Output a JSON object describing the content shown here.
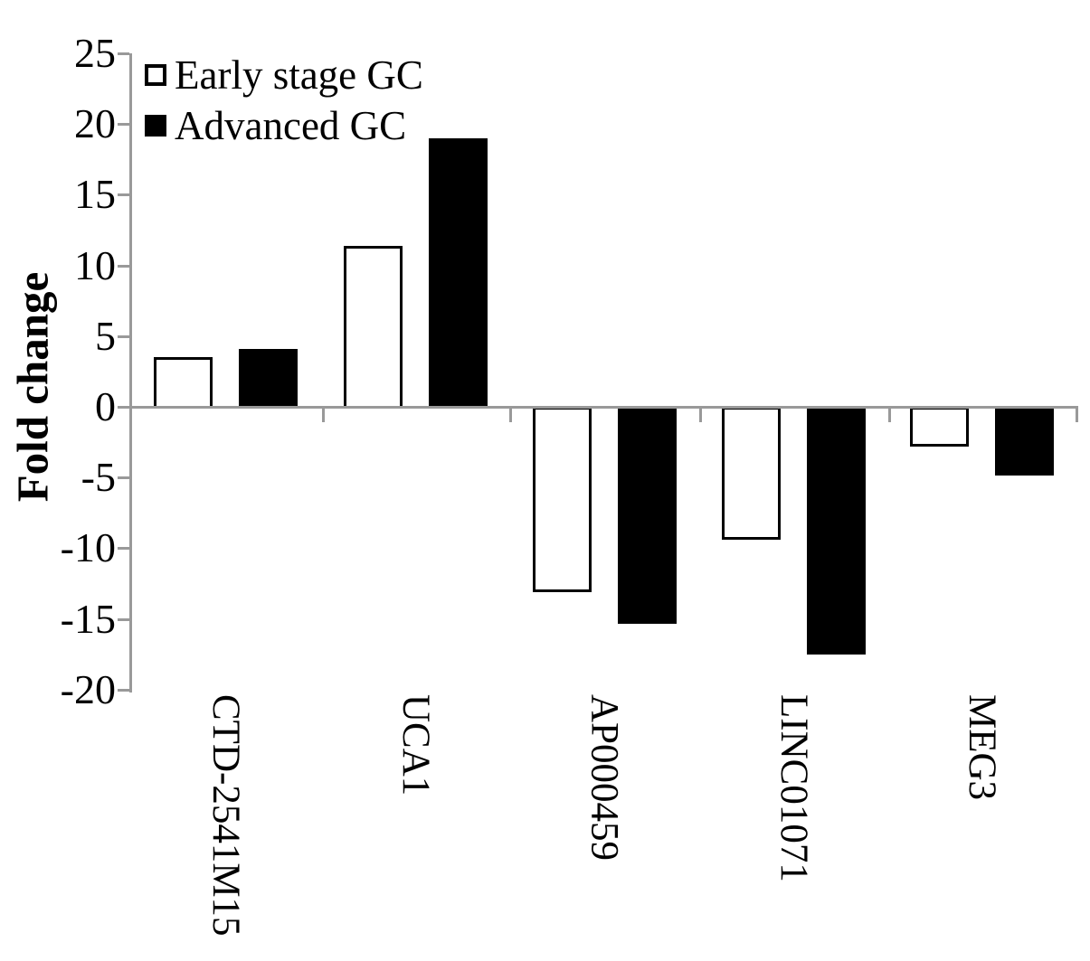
{
  "figure": {
    "background": "#ffffff"
  },
  "chart_data": {
    "type": "bar",
    "title": "",
    "ylabel": "Fold change",
    "xlabel": "",
    "categories": [
      "CTD-2541M15",
      "UCA1",
      "AP000459",
      "LINC01071",
      "MEG3"
    ],
    "series": [
      {
        "name": "Early stage GC",
        "fill": "#ffffff",
        "outline": "#000000",
        "values": [
          3.5,
          11.4,
          -13.0,
          -9.3,
          -2.7
        ]
      },
      {
        "name": "Advanced GC",
        "fill": "#000000",
        "outline": "#000000",
        "values": [
          4.1,
          19.0,
          -15.2,
          -17.4,
          -4.7
        ]
      }
    ],
    "ylim": [
      -20,
      25
    ],
    "ytick_step": 5,
    "ytick_labels": [
      "25",
      "20",
      "15",
      "10",
      "5",
      "0",
      "-5",
      "-10",
      "-15",
      "-20"
    ],
    "legend_position": "top-left",
    "grid": false,
    "axis_color": "#999999",
    "bar_colors": {
      "early_stage_gc": "#ffffff",
      "advanced_gc": "#000000"
    }
  }
}
